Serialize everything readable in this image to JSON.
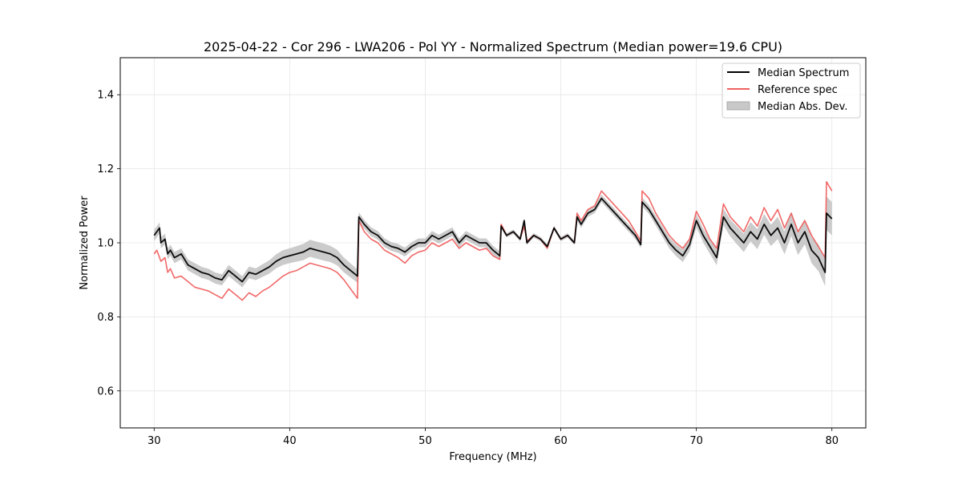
{
  "chart_data": {
    "type": "line",
    "title": "2025-04-22 - Cor 296 - LWA206 - Pol YY - Normalized Spectrum (Median power=19.6 CPU)",
    "xlabel": "Frequency (MHz)",
    "ylabel": "Normalized Power",
    "xlim": [
      27.5,
      82.5
    ],
    "ylim": [
      0.5,
      1.5
    ],
    "xticks": [
      30,
      40,
      50,
      60,
      70,
      80
    ],
    "yticks": [
      0.6,
      0.8,
      1.0,
      1.2,
      1.4
    ],
    "xtick_labels": [
      "30",
      "40",
      "50",
      "60",
      "70",
      "80"
    ],
    "ytick_labels": [
      "0.6",
      "0.8",
      "1.0",
      "1.2",
      "1.4"
    ],
    "grid": true,
    "legend_position": "top-right",
    "legend": [
      {
        "label": "Median Spectrum",
        "kind": "line",
        "color": "#000000"
      },
      {
        "label": "Reference spec",
        "kind": "line",
        "color": "#f06060"
      },
      {
        "label": "Median Abs. Dev.",
        "kind": "band",
        "color": "#c8c8c8"
      }
    ],
    "series": [
      {
        "name": "Median Spectrum",
        "color": "#000000",
        "x": [
          30.0,
          30.2,
          30.4,
          30.5,
          30.8,
          31.0,
          31.2,
          31.5,
          32.0,
          32.5,
          33.0,
          33.5,
          34.0,
          34.5,
          35.0,
          35.5,
          36.0,
          36.5,
          37.0,
          37.5,
          38.0,
          38.5,
          39.0,
          39.5,
          40.0,
          40.5,
          41.0,
          41.5,
          42.0,
          42.5,
          43.0,
          43.5,
          44.0,
          44.5,
          45.0,
          45.1,
          45.5,
          46.0,
          46.5,
          47.0,
          47.5,
          48.0,
          48.5,
          49.0,
          49.5,
          50.0,
          50.5,
          51.0,
          51.5,
          52.0,
          52.5,
          53.0,
          53.5,
          54.0,
          54.5,
          55.0,
          55.5,
          55.6,
          56.0,
          56.5,
          57.0,
          57.3,
          57.5,
          58.0,
          58.5,
          59.0,
          59.5,
          60.0,
          60.5,
          61.0,
          61.2,
          61.5,
          62.0,
          62.5,
          63.0,
          63.5,
          64.0,
          64.5,
          65.0,
          65.5,
          65.9,
          66.0,
          66.5,
          67.0,
          67.5,
          68.0,
          68.5,
          69.0,
          69.5,
          70.0,
          70.5,
          71.0,
          71.5,
          72.0,
          72.5,
          73.0,
          73.5,
          74.0,
          74.5,
          75.0,
          75.5,
          76.0,
          76.5,
          77.0,
          77.5,
          78.0,
          78.5,
          79.0,
          79.5,
          79.6,
          80.0
        ],
        "values": [
          1.02,
          1.03,
          1.04,
          1.0,
          1.01,
          0.97,
          0.98,
          0.96,
          0.97,
          0.94,
          0.93,
          0.92,
          0.915,
          0.905,
          0.9,
          0.925,
          0.91,
          0.895,
          0.92,
          0.915,
          0.925,
          0.935,
          0.95,
          0.96,
          0.965,
          0.97,
          0.975,
          0.985,
          0.98,
          0.975,
          0.97,
          0.96,
          0.94,
          0.925,
          0.91,
          1.07,
          1.05,
          1.03,
          1.02,
          1.0,
          0.99,
          0.985,
          0.975,
          0.99,
          1.0,
          1.0,
          1.02,
          1.01,
          1.02,
          1.03,
          1.0,
          1.02,
          1.01,
          1.0,
          1.0,
          0.98,
          0.965,
          1.045,
          1.02,
          1.03,
          1.01,
          1.06,
          1.0,
          1.02,
          1.01,
          0.99,
          1.04,
          1.01,
          1.02,
          1.0,
          1.07,
          1.05,
          1.08,
          1.09,
          1.12,
          1.1,
          1.08,
          1.06,
          1.04,
          1.02,
          0.995,
          1.11,
          1.09,
          1.06,
          1.03,
          1.0,
          0.98,
          0.965,
          0.995,
          1.06,
          1.02,
          0.99,
          0.96,
          1.07,
          1.04,
          1.02,
          1.0,
          1.03,
          1.01,
          1.05,
          1.02,
          1.04,
          1.0,
          1.05,
          1.0,
          1.03,
          0.98,
          0.96,
          0.92,
          1.08,
          1.065
        ]
      },
      {
        "name": "Reference spec",
        "color": "#f06060",
        "x": [
          30.0,
          30.2,
          30.4,
          30.5,
          30.8,
          31.0,
          31.2,
          31.5,
          32.0,
          32.5,
          33.0,
          33.5,
          34.0,
          34.5,
          35.0,
          35.5,
          36.0,
          36.5,
          37.0,
          37.5,
          38.0,
          38.5,
          39.0,
          39.5,
          40.0,
          40.5,
          41.0,
          41.5,
          42.0,
          42.5,
          43.0,
          43.5,
          44.0,
          44.5,
          45.0,
          45.1,
          45.5,
          46.0,
          46.5,
          47.0,
          47.5,
          48.0,
          48.5,
          49.0,
          49.5,
          50.0,
          50.5,
          51.0,
          51.5,
          52.0,
          52.5,
          53.0,
          53.5,
          54.0,
          54.5,
          55.0,
          55.5,
          55.6,
          56.0,
          56.5,
          57.0,
          57.3,
          57.5,
          58.0,
          58.5,
          59.0,
          59.5,
          60.0,
          60.5,
          61.0,
          61.2,
          61.5,
          62.0,
          62.5,
          63.0,
          63.5,
          64.0,
          64.5,
          65.0,
          65.5,
          65.9,
          66.0,
          66.5,
          67.0,
          67.5,
          68.0,
          68.5,
          69.0,
          69.5,
          70.0,
          70.5,
          71.0,
          71.5,
          72.0,
          72.5,
          73.0,
          73.5,
          74.0,
          74.5,
          75.0,
          75.5,
          76.0,
          76.5,
          77.0,
          77.5,
          78.0,
          78.5,
          79.0,
          79.5,
          79.6,
          80.0
        ],
        "values": [
          0.97,
          0.98,
          0.96,
          0.95,
          0.96,
          0.92,
          0.93,
          0.905,
          0.91,
          0.895,
          0.88,
          0.875,
          0.87,
          0.86,
          0.85,
          0.875,
          0.86,
          0.845,
          0.865,
          0.855,
          0.87,
          0.88,
          0.895,
          0.91,
          0.92,
          0.925,
          0.935,
          0.945,
          0.94,
          0.935,
          0.93,
          0.92,
          0.9,
          0.875,
          0.85,
          1.06,
          1.03,
          1.01,
          1.0,
          0.98,
          0.97,
          0.96,
          0.945,
          0.965,
          0.975,
          0.98,
          1.0,
          0.99,
          1.0,
          1.01,
          0.985,
          1.0,
          0.99,
          0.98,
          0.985,
          0.965,
          0.955,
          1.05,
          1.02,
          1.03,
          1.01,
          1.045,
          1.005,
          1.02,
          1.01,
          0.985,
          1.04,
          1.01,
          1.02,
          1.0,
          1.08,
          1.06,
          1.09,
          1.1,
          1.14,
          1.12,
          1.1,
          1.08,
          1.06,
          1.03,
          1.005,
          1.14,
          1.12,
          1.08,
          1.05,
          1.02,
          1.0,
          0.985,
          1.01,
          1.085,
          1.05,
          1.01,
          0.985,
          1.105,
          1.07,
          1.05,
          1.03,
          1.07,
          1.045,
          1.095,
          1.06,
          1.09,
          1.04,
          1.08,
          1.03,
          1.06,
          1.02,
          0.99,
          0.96,
          1.165,
          1.14
        ]
      }
    ],
    "band": {
      "name": "Median Abs. Dev.",
      "color": "#c8c8c8",
      "half_width": [
        0.015,
        0.015,
        0.015,
        0.015,
        0.015,
        0.015,
        0.015,
        0.015,
        0.015,
        0.015,
        0.015,
        0.015,
        0.015,
        0.015,
        0.015,
        0.015,
        0.015,
        0.015,
        0.016,
        0.016,
        0.017,
        0.018,
        0.019,
        0.02,
        0.02,
        0.021,
        0.022,
        0.023,
        0.023,
        0.023,
        0.022,
        0.021,
        0.02,
        0.019,
        0.018,
        0.012,
        0.012,
        0.012,
        0.012,
        0.012,
        0.012,
        0.012,
        0.012,
        0.012,
        0.012,
        0.012,
        0.012,
        0.012,
        0.012,
        0.012,
        0.012,
        0.012,
        0.012,
        0.012,
        0.012,
        0.012,
        0.012,
        0.006,
        0.006,
        0.006,
        0.006,
        0.006,
        0.006,
        0.006,
        0.006,
        0.006,
        0.006,
        0.006,
        0.006,
        0.006,
        0.01,
        0.01,
        0.01,
        0.01,
        0.01,
        0.01,
        0.01,
        0.01,
        0.01,
        0.01,
        0.01,
        0.012,
        0.012,
        0.013,
        0.014,
        0.015,
        0.016,
        0.017,
        0.018,
        0.018,
        0.019,
        0.02,
        0.021,
        0.022,
        0.023,
        0.024,
        0.025,
        0.026,
        0.027,
        0.028,
        0.029,
        0.03,
        0.031,
        0.032,
        0.033,
        0.034,
        0.035,
        0.036,
        0.037,
        0.045,
        0.045
      ]
    }
  }
}
